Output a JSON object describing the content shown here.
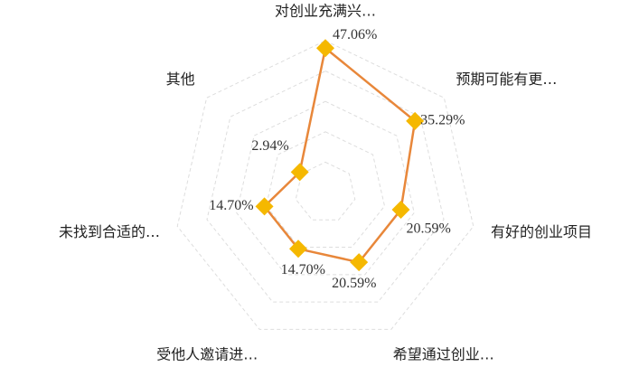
{
  "chart_data": {
    "type": "radar",
    "categories": [
      "对创业充满兴…",
      "预期可能有更…",
      "有好的创业项目",
      "希望通过创业…",
      "受他人邀请进…",
      "未找到合适的…",
      "其他"
    ],
    "values": [
      47.06,
      35.29,
      20.59,
      20.59,
      14.7,
      14.7,
      2.94
    ],
    "value_labels": [
      "47.06%",
      "35.29%",
      "20.59%",
      "20.59%",
      "14.70%",
      "14.70%",
      "2.94%"
    ],
    "ylim": [
      -10,
      50
    ],
    "line_color": "#e8873a",
    "marker_color": "#f5b800",
    "grid": true
  }
}
